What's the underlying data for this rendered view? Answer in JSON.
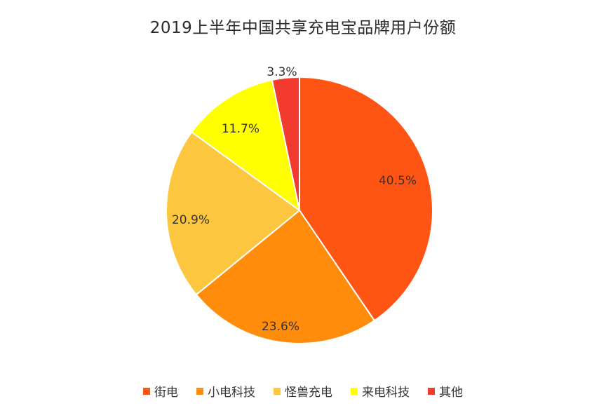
{
  "chart_data": {
    "type": "pie",
    "title": "2019上半年中国共享充电宝品牌用户份额",
    "slices": [
      {
        "name": "街电",
        "value": 40.5,
        "label": "40.5%",
        "color": "#ff5514"
      },
      {
        "name": "小电科技",
        "value": 23.6,
        "label": "23.6%",
        "color": "#ff8c0a"
      },
      {
        "name": "怪兽充电",
        "value": 20.9,
        "label": "20.9%",
        "color": "#fcc63e"
      },
      {
        "name": "来电科技",
        "value": 11.7,
        "label": "11.7%",
        "color": "#ffff00"
      },
      {
        "name": "其他",
        "value": 3.3,
        "label": "3.3%",
        "color": "#f23a2e"
      }
    ],
    "start_angle_deg": 0,
    "direction": "clockwise",
    "legend_position": "bottom"
  }
}
